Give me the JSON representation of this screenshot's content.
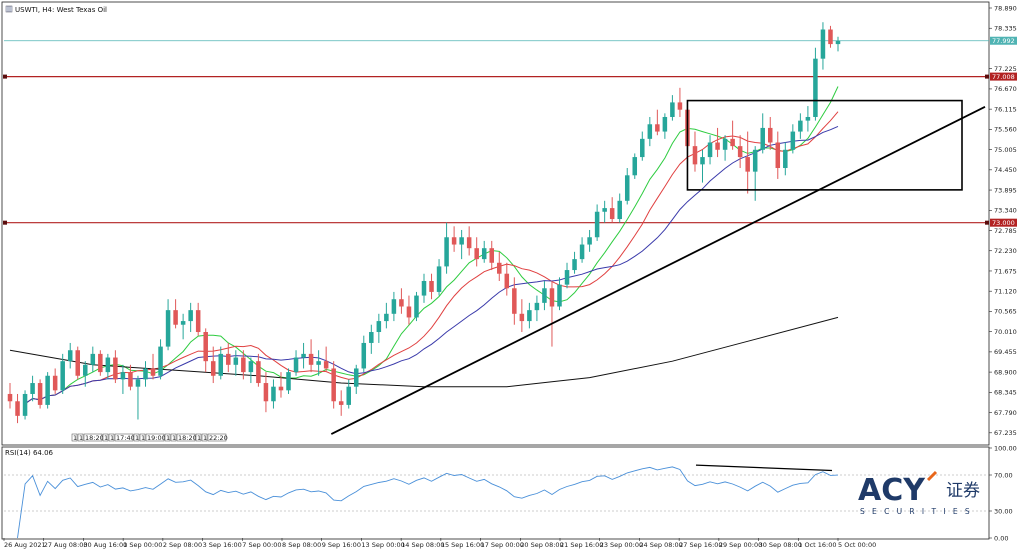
{
  "title": "USWTI, H4: West Texas Oil",
  "rsi_label": "RSI(14) 64.06",
  "chart_data": {
    "type": "candlestick",
    "symbol": "USWTI",
    "timeframe": "H4",
    "instrument": "West Texas Oil",
    "y_ticks": [
      "78.890",
      "78.335",
      "77.225",
      "76.670",
      "76.115",
      "75.560",
      "75.005",
      "74.450",
      "73.895",
      "73.340",
      "72.785",
      "72.230",
      "71.675",
      "71.120",
      "70.565",
      "70.010",
      "69.455",
      "68.900",
      "68.345",
      "67.790",
      "67.235"
    ],
    "y_range": [
      66.9,
      79.0
    ],
    "x_labels": [
      "26 Aug 2021",
      "27 Aug 08:00",
      "30 Aug 16:00",
      "1 Sep 00:00",
      "2 Sep 08:00",
      "3 Sep 16:00",
      "7 Sep 00:00",
      "8 Sep 08:00",
      "9 Sep 16:00",
      "13 Sep 00:00",
      "14 Sep 08:00",
      "15 Sep 16:00",
      "17 Sep 00:00",
      "20 Sep 08:00",
      "21 Sep 16:00",
      "23 Sep 00:00",
      "24 Sep 08:00",
      "27 Sep 16:00",
      "29 Sep 00:00",
      "30 Sep 08:00",
      "1 Oct 16:00",
      "5 Oct 00:00"
    ],
    "current_price": "77.992",
    "levels": [
      {
        "price": 77.008,
        "label": "77.008",
        "color": "#b22222"
      },
      {
        "price": 73.0,
        "label": "73.000",
        "color": "#b22222"
      }
    ],
    "ohlc": [
      [
        68.3,
        68.6,
        67.9,
        68.1
      ],
      [
        68.1,
        68.3,
        67.5,
        67.7
      ],
      [
        67.7,
        68.4,
        67.6,
        68.3
      ],
      [
        68.3,
        68.8,
        68.1,
        68.6
      ],
      [
        68.6,
        68.7,
        67.9,
        68.0
      ],
      [
        68.0,
        68.9,
        67.9,
        68.8
      ],
      [
        68.8,
        69.0,
        68.3,
        68.4
      ],
      [
        68.4,
        69.4,
        68.3,
        69.2
      ],
      [
        69.2,
        69.7,
        69.0,
        69.5
      ],
      [
        69.5,
        69.6,
        68.7,
        68.8
      ],
      [
        68.8,
        69.2,
        68.5,
        69.1
      ],
      [
        69.1,
        69.6,
        68.9,
        69.4
      ],
      [
        69.4,
        69.5,
        68.8,
        68.9
      ],
      [
        68.9,
        69.4,
        68.7,
        69.3
      ],
      [
        69.3,
        69.5,
        68.6,
        68.7
      ],
      [
        68.7,
        69.1,
        68.3,
        68.9
      ],
      [
        68.9,
        69.1,
        68.4,
        68.5
      ],
      [
        68.5,
        68.8,
        67.6,
        68.7
      ],
      [
        68.7,
        69.2,
        68.5,
        69.0
      ],
      [
        69.0,
        69.4,
        68.7,
        68.8
      ],
      [
        68.8,
        69.8,
        68.7,
        69.6
      ],
      [
        69.6,
        70.9,
        69.5,
        70.6
      ],
      [
        70.6,
        70.9,
        70.1,
        70.2
      ],
      [
        70.2,
        70.5,
        69.8,
        70.3
      ],
      [
        70.3,
        70.8,
        70.0,
        70.6
      ],
      [
        70.6,
        70.8,
        69.9,
        70.0
      ],
      [
        70.0,
        70.1,
        68.9,
        69.2
      ],
      [
        69.2,
        69.6,
        68.6,
        68.8
      ],
      [
        68.8,
        69.6,
        68.7,
        69.4
      ],
      [
        69.4,
        69.7,
        68.9,
        69.1
      ],
      [
        69.1,
        69.5,
        68.8,
        69.3
      ],
      [
        69.3,
        69.5,
        68.7,
        68.9
      ],
      [
        68.9,
        69.3,
        68.6,
        69.2
      ],
      [
        69.2,
        69.4,
        68.5,
        68.6
      ],
      [
        68.6,
        68.9,
        67.8,
        68.1
      ],
      [
        68.1,
        68.7,
        67.9,
        68.5
      ],
      [
        68.5,
        68.9,
        68.2,
        68.4
      ],
      [
        68.4,
        69.0,
        68.3,
        68.9
      ],
      [
        68.9,
        69.5,
        68.8,
        69.3
      ],
      [
        69.3,
        69.7,
        69.0,
        69.4
      ],
      [
        69.4,
        69.8,
        68.9,
        69.1
      ],
      [
        69.1,
        69.5,
        68.8,
        69.2
      ],
      [
        69.2,
        69.6,
        68.9,
        69.0
      ],
      [
        69.0,
        69.2,
        67.9,
        68.1
      ],
      [
        68.1,
        68.4,
        67.7,
        68.0
      ],
      [
        68.0,
        68.7,
        67.9,
        68.5
      ],
      [
        68.5,
        69.1,
        68.3,
        69.0
      ],
      [
        69.0,
        69.9,
        68.9,
        69.7
      ],
      [
        69.7,
        70.2,
        69.4,
        70.0
      ],
      [
        70.0,
        70.5,
        69.7,
        70.3
      ],
      [
        70.3,
        70.8,
        70.1,
        70.5
      ],
      [
        70.5,
        71.1,
        70.3,
        70.9
      ],
      [
        70.9,
        71.2,
        70.5,
        70.7
      ],
      [
        70.7,
        71.0,
        70.2,
        70.4
      ],
      [
        70.4,
        71.1,
        70.3,
        71.0
      ],
      [
        71.0,
        71.6,
        70.8,
        71.4
      ],
      [
        71.4,
        71.6,
        70.9,
        71.1
      ],
      [
        71.1,
        72.0,
        71.0,
        71.8
      ],
      [
        71.8,
        73.0,
        71.6,
        72.6
      ],
      [
        72.6,
        72.9,
        72.2,
        72.4
      ],
      [
        72.4,
        72.8,
        72.0,
        72.6
      ],
      [
        72.6,
        72.9,
        72.1,
        72.3
      ],
      [
        72.3,
        72.6,
        71.8,
        72.0
      ],
      [
        72.0,
        72.5,
        71.9,
        72.3
      ],
      [
        72.3,
        72.5,
        71.7,
        71.9
      ],
      [
        71.9,
        72.2,
        71.4,
        71.6
      ],
      [
        71.6,
        71.9,
        71.0,
        71.2
      ],
      [
        71.2,
        71.5,
        70.2,
        70.5
      ],
      [
        70.5,
        70.9,
        70.0,
        70.3
      ],
      [
        70.3,
        70.8,
        70.1,
        70.6
      ],
      [
        70.6,
        71.0,
        70.3,
        70.8
      ],
      [
        70.8,
        71.4,
        70.6,
        71.2
      ],
      [
        71.2,
        71.4,
        69.6,
        70.7
      ],
      [
        70.7,
        71.5,
        70.6,
        71.3
      ],
      [
        71.3,
        71.9,
        71.2,
        71.7
      ],
      [
        71.7,
        72.2,
        71.6,
        72.0
      ],
      [
        72.0,
        72.6,
        71.9,
        72.4
      ],
      [
        72.4,
        72.8,
        72.2,
        72.6
      ],
      [
        72.6,
        73.5,
        72.5,
        73.3
      ],
      [
        73.3,
        73.6,
        73.0,
        73.4
      ],
      [
        73.4,
        73.7,
        73.0,
        73.1
      ],
      [
        73.1,
        73.8,
        73.0,
        73.6
      ],
      [
        73.6,
        74.5,
        73.5,
        74.3
      ],
      [
        74.3,
        74.9,
        74.2,
        74.8
      ],
      [
        74.8,
        75.5,
        74.7,
        75.3
      ],
      [
        75.3,
        75.9,
        75.1,
        75.7
      ],
      [
        75.7,
        76.1,
        75.4,
        75.5
      ],
      [
        75.5,
        76.0,
        75.3,
        75.9
      ],
      [
        75.9,
        76.5,
        75.8,
        76.3
      ],
      [
        76.3,
        76.7,
        75.9,
        76.1
      ],
      [
        76.1,
        76.3,
        74.9,
        75.1
      ],
      [
        75.1,
        75.5,
        74.4,
        74.6
      ],
      [
        74.6,
        75.0,
        74.1,
        74.8
      ],
      [
        74.8,
        75.4,
        74.6,
        75.2
      ],
      [
        75.2,
        75.6,
        74.8,
        75.0
      ],
      [
        75.0,
        75.4,
        74.7,
        75.3
      ],
      [
        75.3,
        75.8,
        75.0,
        75.1
      ],
      [
        75.1,
        75.4,
        74.5,
        74.8
      ],
      [
        74.8,
        75.5,
        73.8,
        74.4
      ],
      [
        74.4,
        75.1,
        73.6,
        75.0
      ],
      [
        75.0,
        76.0,
        74.9,
        75.6
      ],
      [
        75.6,
        75.9,
        75.0,
        75.2
      ],
      [
        75.2,
        75.5,
        74.2,
        74.5
      ],
      [
        74.5,
        75.2,
        74.3,
        75.0
      ],
      [
        75.0,
        75.7,
        74.9,
        75.5
      ],
      [
        75.5,
        76.0,
        75.3,
        75.8
      ],
      [
        75.8,
        76.2,
        75.5,
        75.9
      ],
      [
        75.9,
        77.8,
        75.8,
        77.5
      ],
      [
        77.5,
        78.5,
        77.2,
        78.3
      ],
      [
        78.3,
        78.4,
        77.8,
        77.9
      ],
      [
        77.9,
        78.1,
        77.7,
        77.99
      ]
    ],
    "moving_averages": [
      {
        "name": "MA fast",
        "color": "#2ecc40"
      },
      {
        "name": "MA mid",
        "color": "#e04040"
      },
      {
        "name": "MA slow",
        "color": "#3a3aaa"
      },
      {
        "name": "MA long",
        "color": "#111111"
      }
    ],
    "rsi": {
      "period": 14,
      "value": 64.06,
      "levels": [
        70.0,
        30.0
      ],
      "y_ticks": [
        "100.00",
        "70.00",
        "30.00",
        "0.00"
      ]
    },
    "annotations": [
      {
        "type": "box",
        "from_bar": 90,
        "to_bar": 113,
        "price_low": 73.9,
        "price_high": 76.35
      },
      {
        "type": "trendline",
        "from_bar": 48,
        "from_price": 67.2,
        "to_bar": 113,
        "to_price": 76.4
      },
      {
        "type": "divergence-line",
        "pane": "rsi"
      }
    ]
  },
  "logo": {
    "text": "ACY",
    "cn": "证券",
    "sub": "SECURITIES"
  }
}
